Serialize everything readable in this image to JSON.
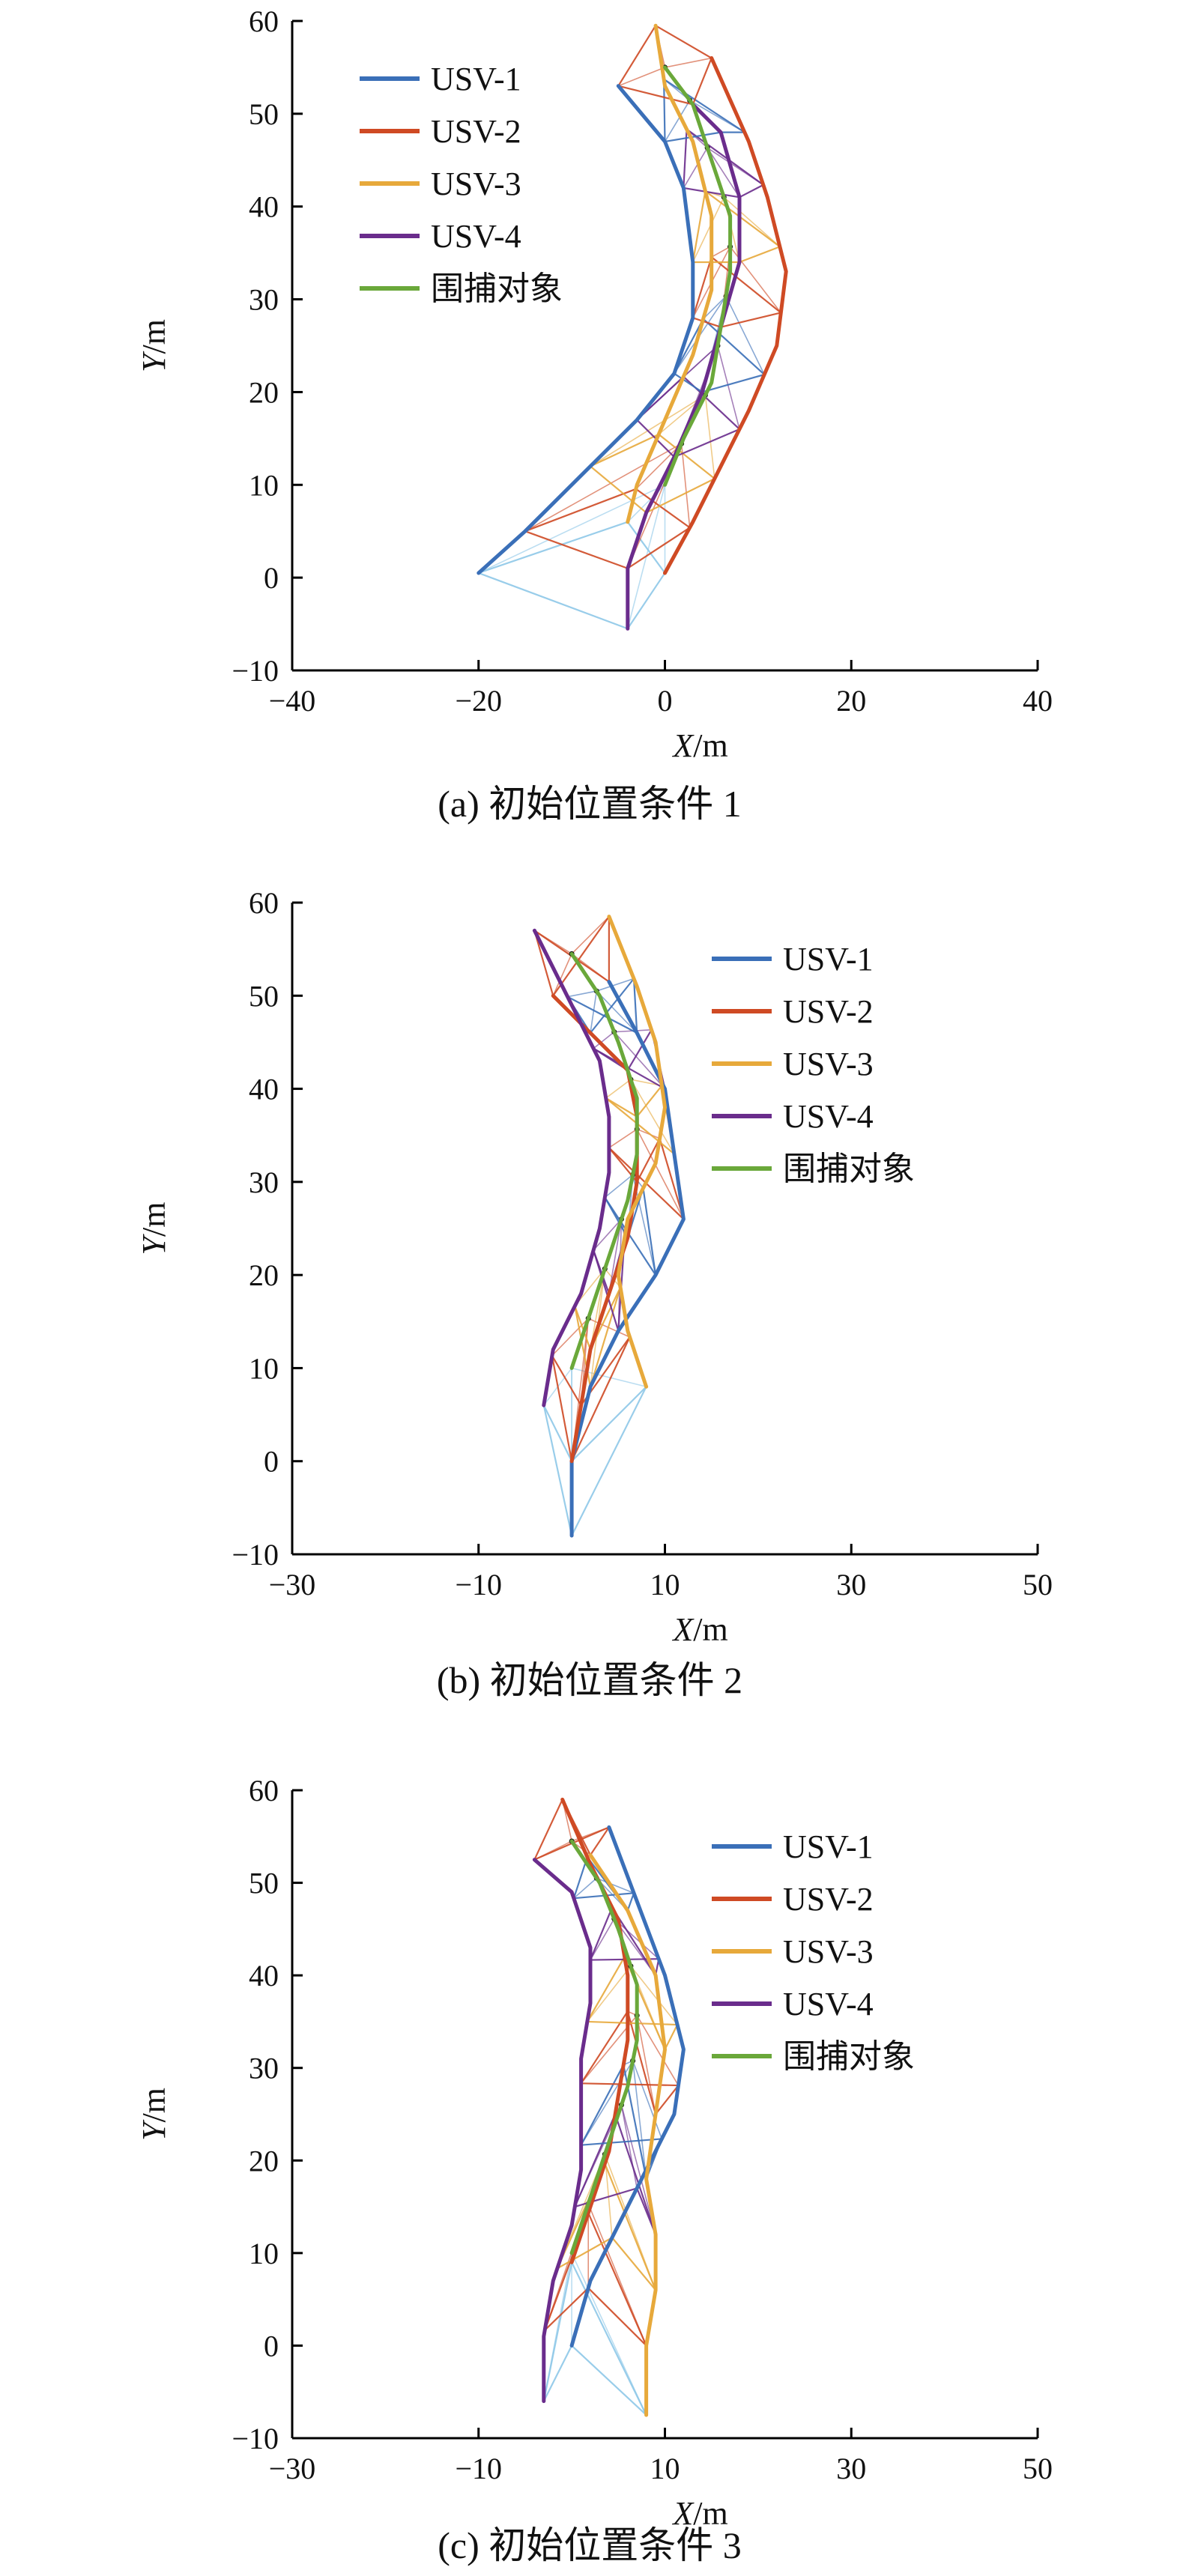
{
  "colors": {
    "usv1": "#3a6fb8",
    "usv2": "#cf4a24",
    "usv3": "#e7a93b",
    "usv4": "#6a2c8c",
    "target": "#6aa83a",
    "link_blue": "#8ec8e8"
  },
  "legend": {
    "items": [
      {
        "name": "USV-1",
        "color": "#3a6fb8"
      },
      {
        "name": "USV-2",
        "color": "#cf4a24"
      },
      {
        "name": "USV-3",
        "color": "#e7a93b"
      },
      {
        "name": "USV-4",
        "color": "#6a2c8c"
      },
      {
        "name": "围捕对象",
        "color": "#6aa83a"
      }
    ]
  },
  "chart_data": [
    {
      "type": "line",
      "caption": "(a) 初始位置条件 1",
      "xlabel": "X/m",
      "ylabel": "Y/m",
      "xlim": [
        -40,
        40
      ],
      "ylim": [
        -10,
        60
      ],
      "xticks": [
        "−40",
        "−20",
        "0",
        "20",
        "40"
      ],
      "yticks": [
        "−10",
        "0",
        "10",
        "20",
        "30",
        "40",
        "50",
        "60"
      ],
      "legend_position": "top-left",
      "series": [
        {
          "name": "USV-1",
          "points": [
            [
              -20,
              0.5
            ],
            [
              -15,
              5
            ],
            [
              -8,
              12
            ],
            [
              -3,
              17
            ],
            [
              1,
              22
            ],
            [
              3,
              28
            ],
            [
              3,
              34
            ],
            [
              2,
              42
            ],
            [
              0,
              47
            ],
            [
              -5,
              53
            ]
          ]
        },
        {
          "name": "USV-2",
          "points": [
            [
              0,
              0.5
            ],
            [
              3,
              6
            ],
            [
              6,
              12
            ],
            [
              9,
              18
            ],
            [
              12,
              25
            ],
            [
              13,
              33
            ],
            [
              11,
              41
            ],
            [
              9,
              47
            ],
            [
              5,
              56
            ]
          ]
        },
        {
          "name": "USV-3",
          "points": [
            [
              -4,
              6
            ],
            [
              -3,
              10
            ],
            [
              0,
              17
            ],
            [
              3,
              24
            ],
            [
              5,
              31
            ],
            [
              5,
              39
            ],
            [
              3,
              47
            ],
            [
              0,
              53
            ],
            [
              -1,
              59.5
            ]
          ]
        },
        {
          "name": "USV-4",
          "points": [
            [
              -4,
              -5.5
            ],
            [
              -4,
              1
            ],
            [
              -2,
              7
            ],
            [
              1,
              13
            ],
            [
              4,
              20
            ],
            [
              6,
              27
            ],
            [
              8,
              34
            ],
            [
              8,
              41
            ],
            [
              6,
              48
            ],
            [
              3,
              51
            ]
          ]
        },
        {
          "name": "围捕对象",
          "points": [
            [
              0,
              10
            ],
            [
              2,
              15
            ],
            [
              5,
              21
            ],
            [
              6,
              27
            ],
            [
              7,
              33
            ],
            [
              7,
              39
            ],
            [
              5,
              45
            ],
            [
              3,
              51
            ],
            [
              0,
              55
            ]
          ]
        }
      ]
    },
    {
      "type": "line",
      "caption": "(b) 初始位置条件 2",
      "xlabel": "X/m",
      "ylabel": "Y/m",
      "xlim": [
        -30,
        50
      ],
      "ylim": [
        -10,
        60
      ],
      "xticks": [
        "−30",
        "−10",
        "10",
        "30",
        "50"
      ],
      "yticks": [
        "−10",
        "0",
        "10",
        "20",
        "30",
        "40",
        "50",
        "60"
      ],
      "legend_position": "top-right",
      "series": [
        {
          "name": "USV-1",
          "points": [
            [
              0,
              -8
            ],
            [
              0,
              0
            ],
            [
              2,
              8
            ],
            [
              5,
              14
            ],
            [
              9,
              20
            ],
            [
              12,
              26
            ],
            [
              11,
              33
            ],
            [
              10,
              40
            ],
            [
              7,
              46
            ],
            [
              4,
              51.5
            ]
          ]
        },
        {
          "name": "USV-2",
          "points": [
            [
              0,
              0
            ],
            [
              1,
              6
            ],
            [
              2,
              12
            ],
            [
              4,
              18
            ],
            [
              6,
              24
            ],
            [
              7,
              30
            ],
            [
              7,
              37
            ],
            [
              6,
              42
            ],
            [
              2,
              46
            ],
            [
              -2,
              50
            ]
          ]
        },
        {
          "name": "USV-3",
          "points": [
            [
              8,
              8
            ],
            [
              6,
              14
            ],
            [
              5,
              20
            ],
            [
              6,
              26
            ],
            [
              9,
              32
            ],
            [
              10,
              38
            ],
            [
              9,
              45
            ],
            [
              7,
              51
            ],
            [
              4,
              58.5
            ]
          ]
        },
        {
          "name": "USV-4",
          "points": [
            [
              -3,
              6
            ],
            [
              -2,
              12
            ],
            [
              1,
              18
            ],
            [
              3,
              25
            ],
            [
              4,
              31
            ],
            [
              4,
              37
            ],
            [
              3,
              43
            ],
            [
              0,
              49
            ],
            [
              -4,
              57
            ]
          ]
        },
        {
          "name": "围捕对象",
          "points": [
            [
              0,
              10
            ],
            [
              2,
              16
            ],
            [
              4,
              22
            ],
            [
              6,
              28
            ],
            [
              7,
              33
            ],
            [
              7,
              39
            ],
            [
              5,
              45
            ],
            [
              3,
              50
            ],
            [
              0,
              54.5
            ]
          ]
        }
      ]
    },
    {
      "type": "line",
      "caption": "(c) 初始位置条件 3",
      "xlabel": "X/m",
      "ylabel": "Y/m",
      "xlim": [
        -30,
        50
      ],
      "ylim": [
        -10,
        60
      ],
      "xticks": [
        "−30",
        "−10",
        "10",
        "30",
        "50"
      ],
      "yticks": [
        "−10",
        "0",
        "10",
        "20",
        "30",
        "40",
        "50",
        "60"
      ],
      "legend_position": "top-right",
      "series": [
        {
          "name": "USV-1",
          "points": [
            [
              0,
              0
            ],
            [
              2,
              7
            ],
            [
              5,
              13
            ],
            [
              8,
              19
            ],
            [
              11,
              25
            ],
            [
              12,
              32
            ],
            [
              10,
              40
            ],
            [
              7,
              48
            ],
            [
              4,
              56
            ]
          ]
        },
        {
          "name": "USV-2",
          "points": [
            [
              0,
              9
            ],
            [
              2,
              15
            ],
            [
              4,
              21
            ],
            [
              5,
              27
            ],
            [
              6,
              33
            ],
            [
              6,
              40
            ],
            [
              5,
              46
            ],
            [
              2,
              52
            ],
            [
              -1,
              59
            ]
          ]
        },
        {
          "name": "USV-3",
          "points": [
            [
              8,
              -7.5
            ],
            [
              8,
              0
            ],
            [
              9,
              6
            ],
            [
              9,
              12
            ],
            [
              8,
              18
            ],
            [
              9,
              25
            ],
            [
              10,
              32
            ],
            [
              9,
              40
            ],
            [
              6,
              47
            ],
            [
              2,
              53
            ]
          ]
        },
        {
          "name": "USV-4",
          "points": [
            [
              -3,
              -6
            ],
            [
              -3,
              1
            ],
            [
              -2,
              7
            ],
            [
              0,
              13
            ],
            [
              1,
              19
            ],
            [
              1,
              25
            ],
            [
              1,
              31
            ],
            [
              2,
              37
            ],
            [
              2,
              43
            ],
            [
              0,
              49
            ],
            [
              -4,
              52.5
            ]
          ]
        },
        {
          "name": "围捕对象",
          "points": [
            [
              0,
              10
            ],
            [
              2,
              16
            ],
            [
              4,
              22
            ],
            [
              6,
              28
            ],
            [
              7,
              33
            ],
            [
              7,
              39
            ],
            [
              5,
              45
            ],
            [
              3,
              50
            ],
            [
              0,
              54.5
            ]
          ]
        }
      ]
    }
  ]
}
